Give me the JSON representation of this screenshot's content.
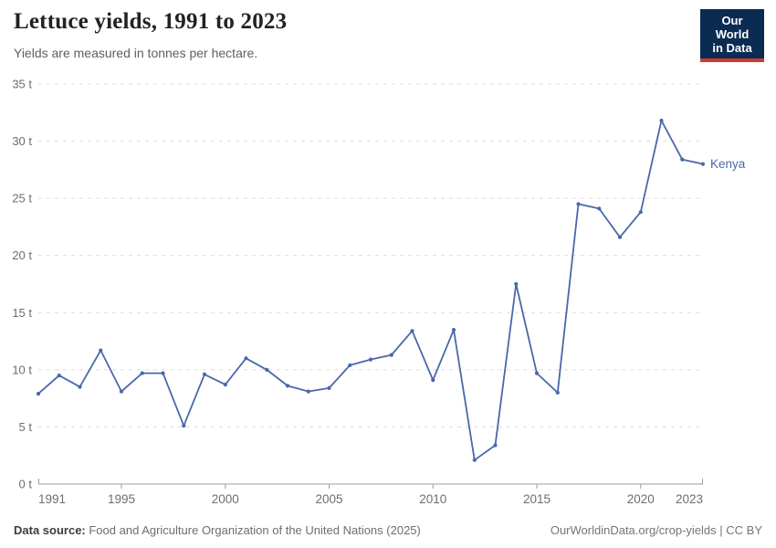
{
  "header": {
    "title": "Lettuce yields, 1991 to 2023",
    "subtitle": "Yields are measured in tonnes per hectare.",
    "logo": {
      "line1": "Our World",
      "line2": "in Data"
    }
  },
  "chart_data": {
    "type": "line",
    "title": "Lettuce yields, 1991 to 2023",
    "subtitle": "Yields are measured in tonnes per hectare.",
    "unit": "tonnes per hectare",
    "x": [
      1991,
      1992,
      1993,
      1994,
      1995,
      1996,
      1997,
      1998,
      1999,
      2000,
      2001,
      2002,
      2003,
      2004,
      2005,
      2006,
      2007,
      2008,
      2009,
      2010,
      2011,
      2012,
      2013,
      2014,
      2015,
      2016,
      2017,
      2018,
      2019,
      2020,
      2021,
      2022,
      2023
    ],
    "series": [
      {
        "name": "Kenya",
        "color": "#4968A9",
        "values": [
          7.9,
          9.5,
          8.5,
          11.7,
          8.1,
          9.7,
          9.7,
          5.1,
          9.6,
          8.7,
          11.0,
          10.0,
          8.6,
          8.1,
          8.4,
          10.4,
          10.9,
          11.3,
          13.4,
          9.1,
          13.5,
          2.1,
          3.4,
          17.5,
          9.7,
          8.0,
          24.5,
          24.1,
          21.6,
          23.8,
          31.8,
          28.4,
          28.0
        ]
      }
    ],
    "xlim": [
      1991,
      2023
    ],
    "ylim": [
      0,
      35
    ],
    "y_ticks": [
      0,
      5,
      10,
      15,
      20,
      25,
      30,
      35
    ],
    "y_tick_suffix": " t",
    "x_ticks": [
      1991,
      1995,
      2000,
      2005,
      2010,
      2015,
      2020,
      2023
    ],
    "grid": "horizontal-dashed",
    "legend_position": "line-end-label",
    "xlabel": "",
    "ylabel": "tonnes per hectare"
  },
  "footer": {
    "source_label": "Data source:",
    "source_text": " Food and Agriculture Organization of the United Nations (2025)",
    "credit": "OurWorldinData.org/crop-yields | CC BY"
  },
  "colors": {
    "line": "#4968A9",
    "entity_label": "#4968A9",
    "grid": "#DCDCDC",
    "axis": "#9E9E9E",
    "tick_text": "#6E6E6E",
    "title_text": "#222222",
    "subtitle_text": "#5F5F5F",
    "logo_bg": "#0A2B52",
    "logo_accent": "#CF3A2F"
  }
}
